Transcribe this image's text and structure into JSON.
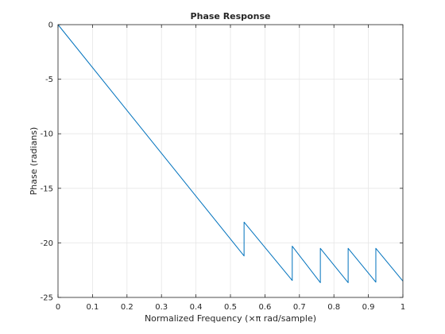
{
  "chart_data": {
    "type": "line",
    "title": "Phase Response",
    "xlabel": "Normalized Frequency  (×π rad/sample)",
    "ylabel": "Phase (radians)",
    "xlim": [
      0,
      1
    ],
    "ylim": [
      -25,
      0
    ],
    "xticks": [
      "0",
      "0.1",
      "0.2",
      "0.3",
      "0.4",
      "0.5",
      "0.6",
      "0.7",
      "0.8",
      "0.9",
      "1"
    ],
    "yticks": [
      "0",
      "-5",
      "-10",
      "-15",
      "-20",
      "-25"
    ],
    "grid": true,
    "line_color": "#0072bd",
    "series": [
      {
        "x": [
          0,
          0.5395,
          0.5395,
          0.6792,
          0.6792,
          0.7607,
          0.7607,
          0.8413,
          0.8413,
          0.9216,
          0.9216,
          1.0
        ],
        "y": [
          0,
          -21.2,
          -18.1,
          -23.45,
          -20.3,
          -23.65,
          -20.5,
          -23.65,
          -20.5,
          -23.6,
          -20.5,
          -23.5
        ]
      }
    ]
  }
}
